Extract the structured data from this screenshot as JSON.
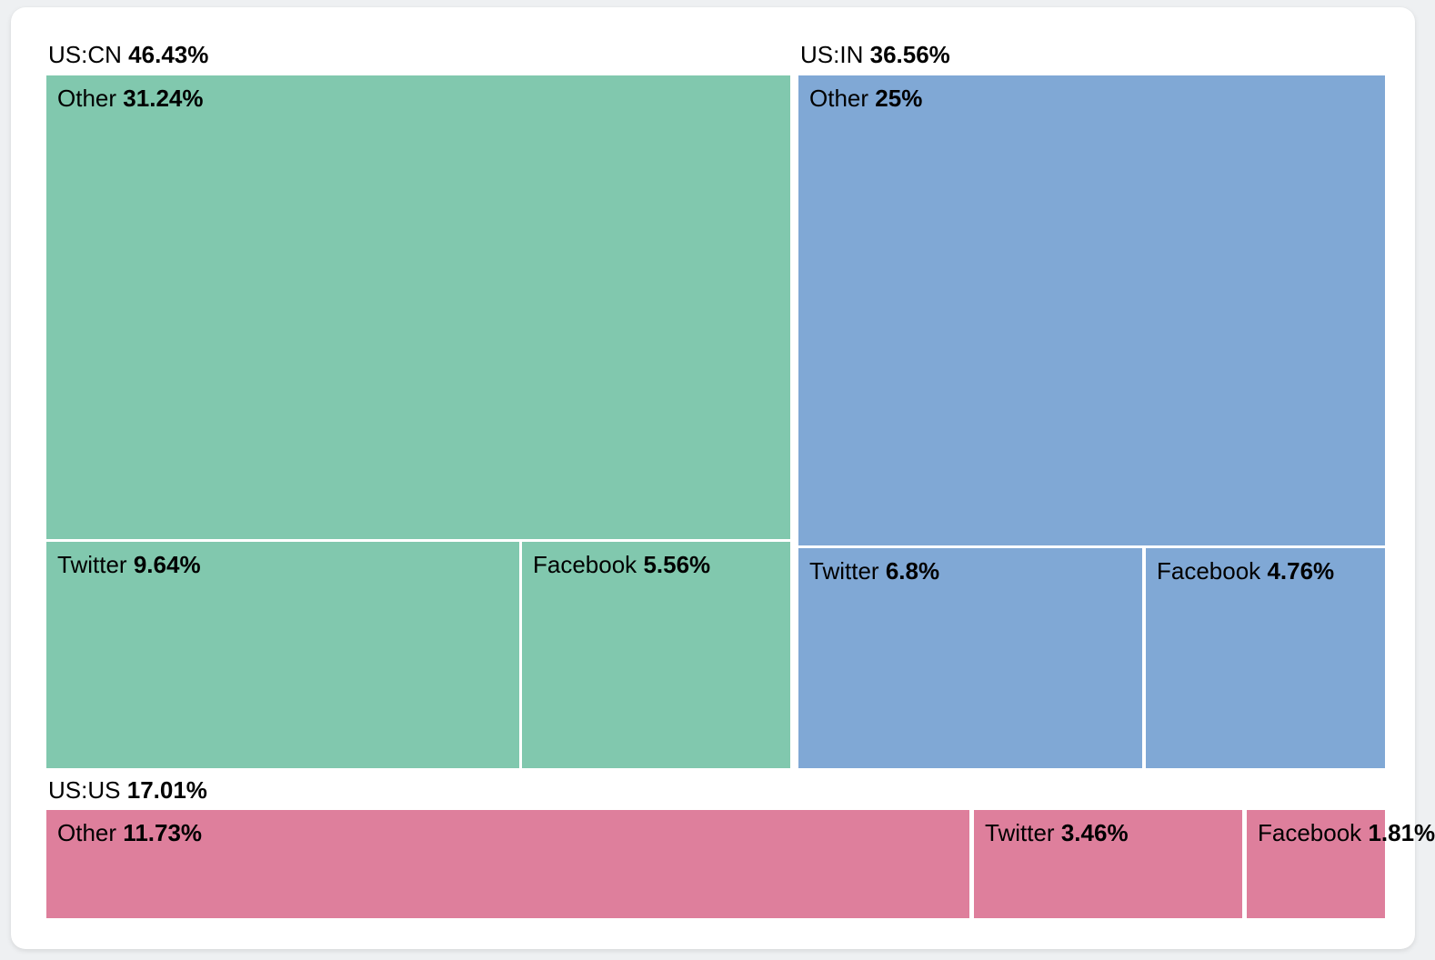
{
  "page": {
    "background_color": "#eef0f2",
    "card_color": "#ffffff",
    "text_color": "#000000"
  },
  "chart_data": {
    "type": "treemap",
    "title": "",
    "unit": "%",
    "legend": "none",
    "gap_color": "#ffffff",
    "groups": [
      {
        "label": "US:CN",
        "pct": "46.43%",
        "value": 46.43,
        "color": "#81c8ae",
        "children": [
          {
            "name": "Other",
            "pct": "31.24%",
            "value": 31.24
          },
          {
            "name": "Twitter",
            "pct": "9.64%",
            "value": 9.64
          },
          {
            "name": "Facebook",
            "pct": "5.56%",
            "value": 5.56
          }
        ]
      },
      {
        "label": "US:IN",
        "pct": "36.56%",
        "value": 36.56,
        "color": "#80a8d5",
        "children": [
          {
            "name": "Other",
            "pct": "25%",
            "value": 25
          },
          {
            "name": "Twitter",
            "pct": "6.8%",
            "value": 6.8
          },
          {
            "name": "Facebook",
            "pct": "4.76%",
            "value": 4.76
          }
        ]
      },
      {
        "label": "US:US",
        "pct": "17.01%",
        "value": 17.01,
        "color": "#de7f9c",
        "children": [
          {
            "name": "Other",
            "pct": "11.73%",
            "value": 11.73
          },
          {
            "name": "Twitter",
            "pct": "3.46%",
            "value": 3.46
          },
          {
            "name": "Facebook",
            "pct": "1.81%",
            "value": 1.81
          }
        ]
      }
    ]
  }
}
